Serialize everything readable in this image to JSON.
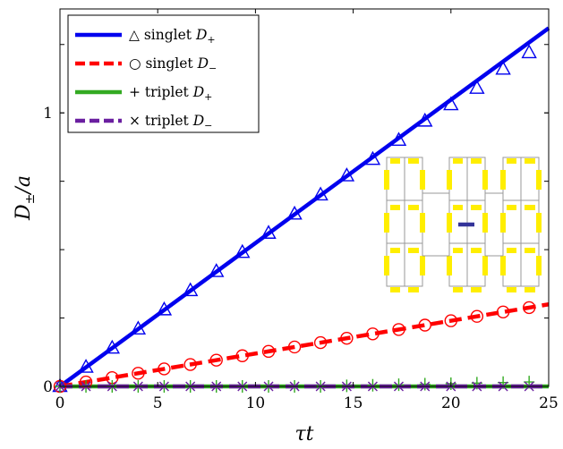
{
  "chart_data": {
    "type": "line",
    "title": "",
    "xlabel": "τt",
    "ylabel": "D±/a",
    "xlim": [
      0,
      25
    ],
    "ylim": [
      0,
      1.38
    ],
    "x_ticks": [
      0,
      5,
      10,
      15,
      20,
      25
    ],
    "x_tick_labels": [
      "0",
      "5",
      "10",
      "15",
      "20",
      "25"
    ],
    "y_ticks": [
      0,
      1
    ],
    "y_tick_labels": [
      "0",
      "1"
    ],
    "grid": false,
    "legend_position": "top-left",
    "series": [
      {
        "name": "△ singlet D+",
        "line_style": "solid",
        "color": "#0000ee",
        "marker": "triangle",
        "line_x": [
          0,
          25
        ],
        "line_y": [
          0,
          1.31
        ],
        "marker_x": [
          0,
          1.33,
          2.67,
          4.0,
          5.33,
          6.67,
          8.0,
          9.33,
          10.67,
          12.0,
          13.33,
          14.67,
          16.0,
          17.33,
          18.67,
          20.0,
          21.33,
          22.67,
          24.0
        ],
        "marker_y": [
          0.0,
          0.07,
          0.14,
          0.21,
          0.28,
          0.35,
          0.42,
          0.49,
          0.56,
          0.63,
          0.7,
          0.77,
          0.83,
          0.9,
          0.97,
          1.03,
          1.09,
          1.16,
          1.22
        ]
      },
      {
        "name": "○ singlet D−",
        "line_style": "dashed",
        "color": "#ff0000",
        "marker": "circle",
        "line_x": [
          0,
          25
        ],
        "line_y": [
          0,
          0.3
        ],
        "marker_x": [
          0,
          1.33,
          2.67,
          4.0,
          5.33,
          6.67,
          8.0,
          9.33,
          10.67,
          12.0,
          13.33,
          14.67,
          16.0,
          17.33,
          18.67,
          20.0,
          21.33,
          22.67,
          24.0
        ],
        "marker_y": [
          0.0,
          0.016,
          0.032,
          0.048,
          0.064,
          0.08,
          0.096,
          0.112,
          0.128,
          0.144,
          0.16,
          0.176,
          0.192,
          0.208,
          0.224,
          0.24,
          0.256,
          0.272,
          0.288
        ]
      },
      {
        "name": "+ triplet D+",
        "line_style": "solid",
        "color": "#33aa22",
        "marker": "plus",
        "line_x": [
          0,
          25
        ],
        "line_y": [
          0,
          0
        ],
        "marker_x": [
          0,
          1.33,
          2.67,
          4.0,
          5.33,
          6.67,
          8.0,
          9.33,
          10.67,
          12.0,
          13.33,
          14.67,
          16.0,
          17.33,
          18.67,
          20.0,
          21.33,
          22.67,
          24.0
        ],
        "marker_y": [
          0,
          0,
          0,
          0,
          0,
          0,
          0,
          0,
          0,
          0,
          0,
          0.002,
          0.004,
          0.006,
          0.008,
          0.01,
          0.012,
          0.014,
          0.016
        ]
      },
      {
        "name": "× triplet D−",
        "line_style": "dashed",
        "color": "#6a1fa0",
        "marker": "cross",
        "line_x": [
          0,
          25
        ],
        "line_y": [
          0,
          0
        ],
        "marker_x": [
          0,
          1.33,
          2.67,
          4.0,
          5.33,
          6.67,
          8.0,
          9.33,
          10.67,
          12.0,
          13.33,
          14.67,
          16.0,
          17.33,
          18.67,
          20.0,
          21.33,
          22.67,
          24.0
        ],
        "marker_y": [
          0,
          0,
          0,
          0,
          0,
          0,
          0,
          0,
          0,
          0,
          0,
          0,
          0,
          0,
          0,
          0,
          0,
          0,
          0
        ]
      }
    ],
    "legend_entries": [
      {
        "label_main": "△ singlet ",
        "label_var": "D",
        "label_sub": "+"
      },
      {
        "label_main": "○ singlet ",
        "label_var": "D",
        "label_sub": "−"
      },
      {
        "label_main": "+ triplet ",
        "label_var": "D",
        "label_sub": "+"
      },
      {
        "label_main": "× triplet ",
        "label_var": "D",
        "label_sub": "−"
      }
    ],
    "axis_label_parts": {
      "x_main": "τt",
      "y_var": "D",
      "y_sub": "±",
      "y_rest": "/a"
    },
    "inset": {
      "description_colors": {
        "bond": "#ffee00",
        "center": "#333399",
        "lattice": "#999999"
      }
    }
  }
}
